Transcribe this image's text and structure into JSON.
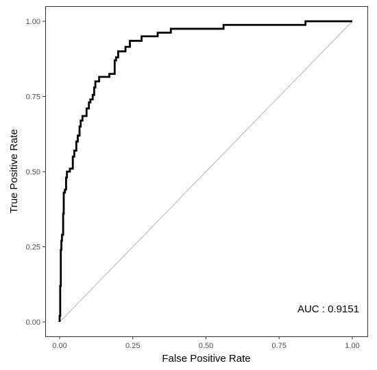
{
  "chart_data": {
    "type": "line",
    "title": "",
    "xlabel": "False Positive Rate",
    "ylabel": "True Positive Rate",
    "xlim": [
      0,
      1
    ],
    "ylim": [
      0,
      1
    ],
    "x_ticks": [
      "0.00",
      "0.25",
      "0.50",
      "0.75",
      "1.00"
    ],
    "y_ticks": [
      "0.00",
      "0.25",
      "0.50",
      "0.75",
      "1.00"
    ],
    "grid": false,
    "legend": "none",
    "annotation": "AUC : 0.9151",
    "colors": {
      "roc": "#000000",
      "reference": "#b3b3b3",
      "panel_border": "#333333"
    },
    "series": [
      {
        "points": [
          [
            0.0,
            0.0
          ],
          [
            0.0,
            0.02
          ],
          [
            0.002,
            0.02
          ],
          [
            0.002,
            0.12
          ],
          [
            0.004,
            0.12
          ],
          [
            0.004,
            0.24
          ],
          [
            0.006,
            0.24
          ],
          [
            0.006,
            0.27
          ],
          [
            0.008,
            0.27
          ],
          [
            0.008,
            0.29
          ],
          [
            0.012,
            0.29
          ],
          [
            0.012,
            0.36
          ],
          [
            0.014,
            0.36
          ],
          [
            0.014,
            0.43
          ],
          [
            0.018,
            0.43
          ],
          [
            0.018,
            0.44
          ],
          [
            0.022,
            0.44
          ],
          [
            0.022,
            0.48
          ],
          [
            0.025,
            0.48
          ],
          [
            0.025,
            0.5
          ],
          [
            0.035,
            0.5
          ],
          [
            0.035,
            0.51
          ],
          [
            0.045,
            0.51
          ],
          [
            0.045,
            0.55
          ],
          [
            0.05,
            0.55
          ],
          [
            0.05,
            0.57
          ],
          [
            0.057,
            0.57
          ],
          [
            0.057,
            0.6
          ],
          [
            0.062,
            0.6
          ],
          [
            0.062,
            0.62
          ],
          [
            0.068,
            0.62
          ],
          [
            0.068,
            0.65
          ],
          [
            0.072,
            0.65
          ],
          [
            0.072,
            0.67
          ],
          [
            0.078,
            0.67
          ],
          [
            0.078,
            0.685
          ],
          [
            0.092,
            0.685
          ],
          [
            0.092,
            0.71
          ],
          [
            0.1,
            0.71
          ],
          [
            0.1,
            0.73
          ],
          [
            0.105,
            0.73
          ],
          [
            0.105,
            0.74
          ],
          [
            0.113,
            0.74
          ],
          [
            0.113,
            0.755
          ],
          [
            0.118,
            0.755
          ],
          [
            0.118,
            0.78
          ],
          [
            0.122,
            0.78
          ],
          [
            0.122,
            0.8
          ],
          [
            0.135,
            0.8
          ],
          [
            0.135,
            0.815
          ],
          [
            0.17,
            0.815
          ],
          [
            0.17,
            0.825
          ],
          [
            0.188,
            0.825
          ],
          [
            0.188,
            0.87
          ],
          [
            0.193,
            0.87
          ],
          [
            0.193,
            0.88
          ],
          [
            0.2,
            0.88
          ],
          [
            0.2,
            0.9
          ],
          [
            0.225,
            0.9
          ],
          [
            0.225,
            0.915
          ],
          [
            0.24,
            0.915
          ],
          [
            0.24,
            0.935
          ],
          [
            0.28,
            0.935
          ],
          [
            0.28,
            0.95
          ],
          [
            0.335,
            0.95
          ],
          [
            0.335,
            0.962
          ],
          [
            0.38,
            0.962
          ],
          [
            0.38,
            0.975
          ],
          [
            0.56,
            0.975
          ],
          [
            0.56,
            0.988
          ],
          [
            0.84,
            0.988
          ],
          [
            0.84,
            1.0
          ],
          [
            1.0,
            1.0
          ]
        ]
      },
      {
        "points": [
          [
            0,
            0
          ],
          [
            1,
            1
          ]
        ]
      }
    ]
  }
}
